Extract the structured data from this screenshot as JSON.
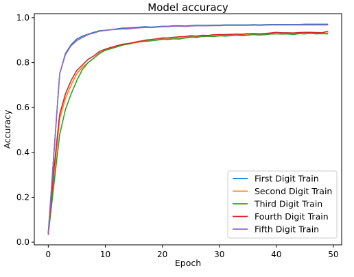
{
  "chart_data": {
    "type": "line",
    "title": "Model accuracy",
    "xlabel": "Epoch",
    "ylabel": "Accuracy",
    "xlim": [
      -2.45,
      51.45
    ],
    "ylim": [
      -0.012,
      1.018
    ],
    "xticks": [
      0,
      10,
      20,
      30,
      40,
      50
    ],
    "yticks": [
      0.0,
      0.2,
      0.4,
      0.6,
      0.8,
      1.0
    ],
    "ytick_labels": [
      "0.0",
      "0.2",
      "0.4",
      "0.6",
      "0.8",
      "1.0"
    ],
    "legend_position": "lower-right",
    "x": [
      0,
      1,
      2,
      3,
      4,
      5,
      6,
      7,
      8,
      9,
      10,
      11,
      12,
      13,
      14,
      15,
      16,
      17,
      18,
      19,
      20,
      21,
      22,
      23,
      24,
      25,
      26,
      27,
      28,
      29,
      30,
      31,
      32,
      33,
      34,
      35,
      36,
      37,
      38,
      39,
      40,
      41,
      42,
      43,
      44,
      45,
      46,
      47,
      48,
      49
    ],
    "series": [
      {
        "name": "First Digit Train",
        "color": "#1f77b4",
        "values": [
          0.04,
          0.4,
          0.75,
          0.84,
          0.88,
          0.905,
          0.918,
          0.927,
          0.935,
          0.942,
          0.944,
          0.947,
          0.95,
          0.954,
          0.954,
          0.956,
          0.958,
          0.96,
          0.958,
          0.96,
          0.962,
          0.962,
          0.964,
          0.964,
          0.963,
          0.965,
          0.966,
          0.966,
          0.966,
          0.967,
          0.967,
          0.968,
          0.968,
          0.968,
          0.968,
          0.968,
          0.969,
          0.968,
          0.969,
          0.97,
          0.97,
          0.97,
          0.97,
          0.97,
          0.97,
          0.971,
          0.971,
          0.971,
          0.971,
          0.971
        ]
      },
      {
        "name": "Second Digit Train",
        "color": "#ff7f0e",
        "values": [
          0.04,
          0.3,
          0.55,
          0.64,
          0.7,
          0.75,
          0.78,
          0.8,
          0.82,
          0.84,
          0.855,
          0.865,
          0.87,
          0.878,
          0.882,
          0.887,
          0.892,
          0.895,
          0.897,
          0.9,
          0.903,
          0.905,
          0.907,
          0.908,
          0.91,
          0.912,
          0.914,
          0.916,
          0.917,
          0.918,
          0.919,
          0.92,
          0.921,
          0.922,
          0.923,
          0.924,
          0.925,
          0.925,
          0.926,
          0.927,
          0.928,
          0.928,
          0.929,
          0.929,
          0.93,
          0.93,
          0.931,
          0.931,
          0.931,
          0.932
        ]
      },
      {
        "name": "Third Digit Train",
        "color": "#2ca02c",
        "values": [
          0.035,
          0.26,
          0.48,
          0.59,
          0.66,
          0.72,
          0.77,
          0.8,
          0.82,
          0.843,
          0.855,
          0.862,
          0.87,
          0.878,
          0.883,
          0.89,
          0.895,
          0.895,
          0.897,
          0.9,
          0.905,
          0.903,
          0.906,
          0.905,
          0.91,
          0.915,
          0.912,
          0.917,
          0.918,
          0.916,
          0.92,
          0.918,
          0.92,
          0.922,
          0.92,
          0.922,
          0.925,
          0.923,
          0.924,
          0.928,
          0.928,
          0.927,
          0.928,
          0.925,
          0.929,
          0.928,
          0.93,
          0.928,
          0.929,
          0.928
        ]
      },
      {
        "name": "Fourth Digit Train",
        "color": "#d62728",
        "values": [
          0.035,
          0.33,
          0.57,
          0.66,
          0.72,
          0.765,
          0.79,
          0.815,
          0.83,
          0.85,
          0.86,
          0.868,
          0.875,
          0.882,
          0.885,
          0.89,
          0.895,
          0.9,
          0.903,
          0.906,
          0.91,
          0.91,
          0.913,
          0.915,
          0.916,
          0.92,
          0.918,
          0.922,
          0.921,
          0.924,
          0.925,
          0.925,
          0.926,
          0.927,
          0.926,
          0.93,
          0.93,
          0.928,
          0.93,
          0.932,
          0.935,
          0.933,
          0.933,
          0.932,
          0.934,
          0.935,
          0.935,
          0.934,
          0.933,
          0.94
        ]
      },
      {
        "name": "Fifth Digit Train",
        "color": "#9467bd",
        "values": [
          0.04,
          0.4,
          0.75,
          0.835,
          0.875,
          0.898,
          0.912,
          0.925,
          0.932,
          0.94,
          0.943,
          0.946,
          0.948,
          0.95,
          0.95,
          0.953,
          0.955,
          0.957,
          0.956,
          0.958,
          0.96,
          0.96,
          0.962,
          0.962,
          0.961,
          0.963,
          0.964,
          0.964,
          0.964,
          0.965,
          0.965,
          0.966,
          0.966,
          0.966,
          0.966,
          0.966,
          0.967,
          0.966,
          0.967,
          0.968,
          0.968,
          0.968,
          0.968,
          0.968,
          0.968,
          0.968,
          0.968,
          0.968,
          0.968,
          0.968
        ]
      }
    ]
  }
}
